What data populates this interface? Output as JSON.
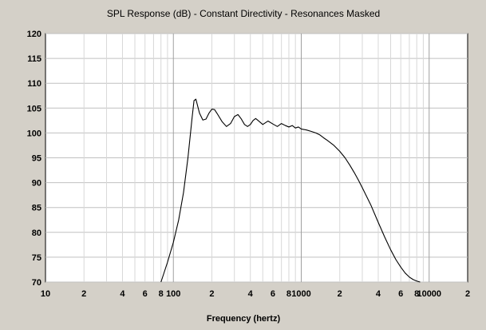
{
  "chart_data": {
    "type": "line",
    "title": "SPL Response (dB) - Constant Directivity - Resonances Masked",
    "xlabel": "Frequency (hertz)",
    "ylabel": "",
    "x_scale": "log",
    "xlim": [
      10,
      20000
    ],
    "ylim": [
      70,
      120
    ],
    "grid": true,
    "y_ticks": [
      "70",
      "75",
      "80",
      "85",
      "90",
      "95",
      "100",
      "105",
      "110",
      "115",
      "120"
    ],
    "x_ticks": [
      {
        "value": 10,
        "label": "10"
      },
      {
        "value": 20,
        "label": "2"
      },
      {
        "value": 40,
        "label": "4"
      },
      {
        "value": 60,
        "label": "6"
      },
      {
        "value": 80,
        "label": "8"
      },
      {
        "value": 100,
        "label": "100"
      },
      {
        "value": 200,
        "label": "2"
      },
      {
        "value": 400,
        "label": "4"
      },
      {
        "value": 600,
        "label": "6"
      },
      {
        "value": 800,
        "label": "8"
      },
      {
        "value": 1000,
        "label": "1000"
      },
      {
        "value": 2000,
        "label": "2"
      },
      {
        "value": 4000,
        "label": "4"
      },
      {
        "value": 6000,
        "label": "6"
      },
      {
        "value": 8000,
        "label": "8"
      },
      {
        "value": 10000,
        "label": "10000"
      },
      {
        "value": 20000,
        "label": "2"
      }
    ],
    "series": [
      {
        "color": "#000000",
        "x": [
          80,
          90,
          100,
          110,
          120,
          130,
          140,
          145,
          150,
          160,
          170,
          180,
          190,
          200,
          210,
          220,
          240,
          260,
          280,
          300,
          320,
          340,
          360,
          380,
          400,
          420,
          440,
          460,
          500,
          550,
          600,
          650,
          700,
          750,
          800,
          850,
          900,
          950,
          1000,
          1100,
          1200,
          1300,
          1400,
          1500,
          1600,
          1800,
          2000,
          2200,
          2400,
          2600,
          2800,
          3000,
          3500,
          4000,
          4500,
          5000,
          5500,
          6000,
          6500,
          7000,
          7500,
          8000,
          8500
        ],
        "y": [
          70,
          74,
          78,
          82.5,
          88,
          95,
          103,
          106.5,
          106.8,
          104,
          102.6,
          102.8,
          104,
          104.8,
          104.7,
          103.9,
          102.3,
          101.3,
          101.9,
          103.3,
          103.7,
          102.8,
          101.7,
          101.3,
          101.7,
          102.5,
          102.9,
          102.5,
          101.7,
          102.4,
          101.8,
          101.3,
          101.9,
          101.5,
          101.2,
          101.5,
          101.0,
          101.2,
          100.8,
          100.6,
          100.3,
          100.0,
          99.6,
          99.0,
          98.5,
          97.5,
          96.3,
          95.0,
          93.5,
          92.0,
          90.5,
          89.0,
          85.5,
          82.0,
          79.0,
          76.5,
          74.5,
          73.0,
          71.8,
          71.0,
          70.5,
          70.2,
          70
        ]
      }
    ]
  }
}
